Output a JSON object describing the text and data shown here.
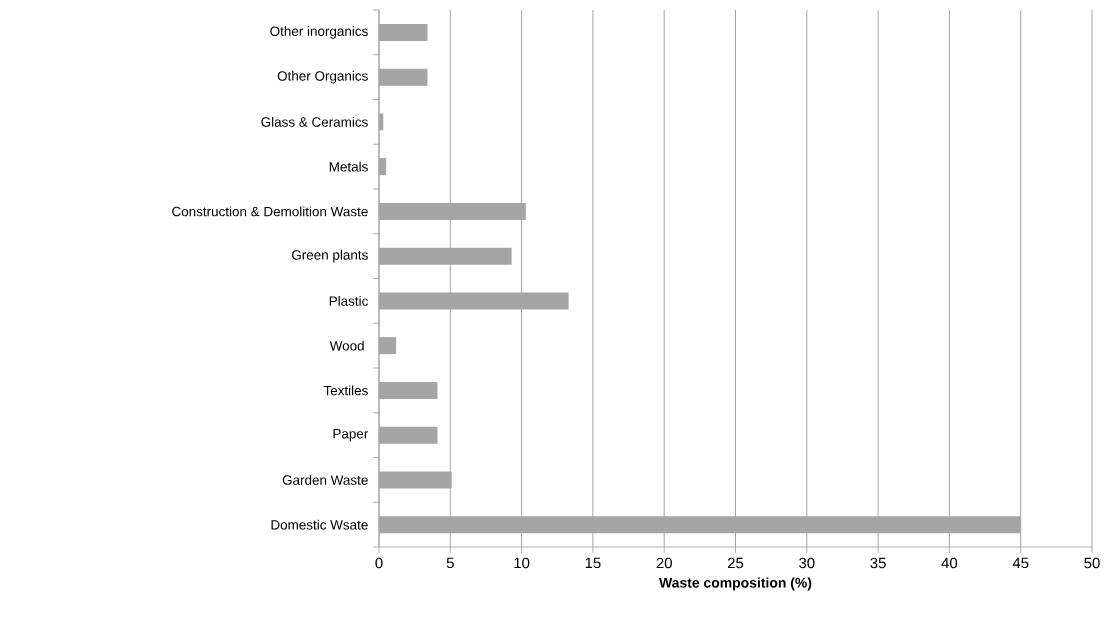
{
  "chart_data": {
    "type": "bar",
    "orientation": "horizontal",
    "xlabel": "Waste composition (%)",
    "categories": [
      "Other inorganics",
      "Other Organics",
      "Glass & Ceramics",
      "Metals",
      "Construction & Demolition Waste",
      "Green plants",
      "Plastic",
      "Wood ",
      "Textiles",
      "Paper",
      "Garden Waste",
      "Domestic Wsate"
    ],
    "values": [
      3.4,
      3.4,
      0.3,
      0.5,
      10.3,
      9.3,
      13.3,
      1.2,
      4.1,
      4.1,
      5.1,
      45
    ],
    "color": "#a5a5a5",
    "xlim": [
      0,
      50
    ],
    "xticks": [
      0,
      5,
      10,
      15,
      20,
      25,
      30,
      35,
      40,
      45,
      50
    ],
    "grid": "x"
  }
}
